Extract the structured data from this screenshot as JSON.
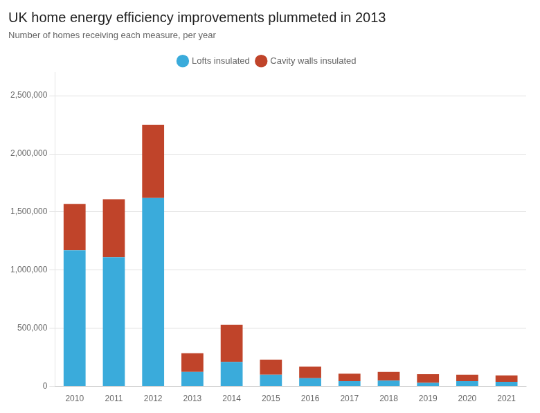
{
  "chart_data": {
    "type": "bar",
    "title": "UK home energy efficiency improvements plummeted in 2013",
    "subtitle": "Number of homes receiving each measure, per year",
    "categories": [
      "2010",
      "2011",
      "2012",
      "2013",
      "2014",
      "2015",
      "2016",
      "2017",
      "2018",
      "2019",
      "2020",
      "2021"
    ],
    "series": [
      {
        "name": "Lofts insulated",
        "color": "#3aabdb",
        "values": [
          1170000,
          1110000,
          1620000,
          125000,
          210000,
          100000,
          70000,
          45000,
          50000,
          30000,
          45000,
          40000
        ]
      },
      {
        "name": "Cavity walls insulated",
        "color": "#c0442a",
        "values": [
          400000,
          500000,
          630000,
          160000,
          320000,
          130000,
          100000,
          65000,
          75000,
          75000,
          55000,
          55000
        ]
      }
    ],
    "stacked": true,
    "ylim": [
      0,
      2700000
    ],
    "yticks": [
      0,
      {
        "value": 500000,
        "label": "500,000"
      },
      {
        "value": 1000000,
        "label": "1,000,000"
      },
      {
        "value": 1500000,
        "label": "1,500,000"
      },
      {
        "value": 2000000,
        "label": "2,000,000"
      },
      {
        "value": 2500000,
        "label": "2,500,000"
      }
    ],
    "grid": true,
    "legend": "top"
  }
}
